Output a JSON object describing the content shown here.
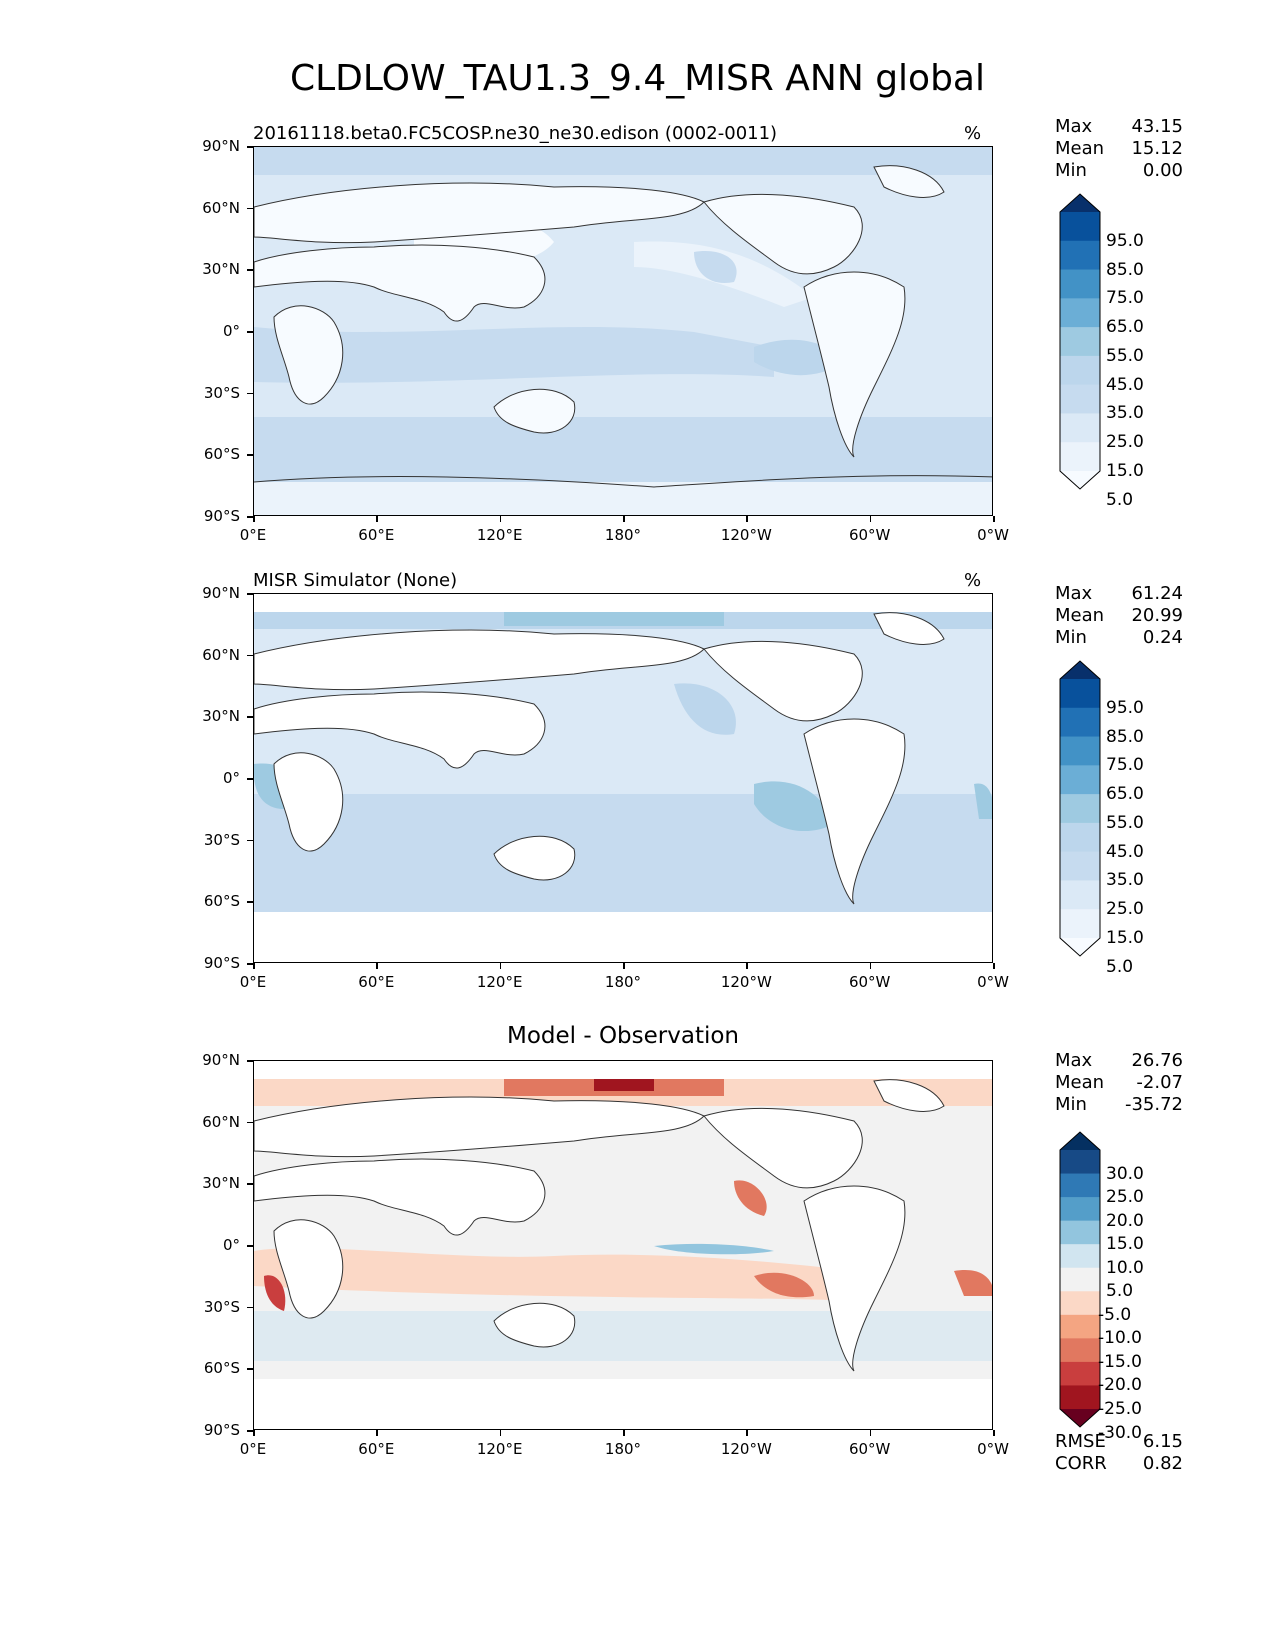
{
  "title": "CLDLOW_TAU1.3_9.4_MISR ANN global",
  "lat_labels": [
    "90°N",
    "60°N",
    "30°N",
    "0°",
    "30°S",
    "60°S",
    "90°S"
  ],
  "lon_labels": [
    "0°E",
    "60°E",
    "120°E",
    "180°",
    "120°W",
    "60°W",
    "0°W"
  ],
  "panels": [
    {
      "title": "20161118.beta0.FC5COSP.ne30_ne30.edison (0002-0011)",
      "units": "%",
      "stats": {
        "max_label": "Max",
        "max": "43.15",
        "mean_label": "Mean",
        "mean": "15.12",
        "min_label": "Min",
        "min": "0.00"
      },
      "colorbar": {
        "levels": [
          "95.0",
          "85.0",
          "75.0",
          "65.0",
          "55.0",
          "45.0",
          "35.0",
          "25.0",
          "15.0",
          "5.0"
        ],
        "colors": [
          "#08306b",
          "#08519c",
          "#2171b5",
          "#4292c6",
          "#6baed6",
          "#9ecae1",
          "#bcd6ec",
          "#c6dbef",
          "#dbe9f6",
          "#ebf3fb",
          "#f7fbff"
        ]
      }
    },
    {
      "title": "MISR Simulator (None)",
      "units": "%",
      "stats": {
        "max_label": "Max",
        "max": "61.24",
        "mean_label": "Mean",
        "mean": "20.99",
        "min_label": "Min",
        "min": "0.24"
      },
      "colorbar": {
        "levels": [
          "95.0",
          "85.0",
          "75.0",
          "65.0",
          "55.0",
          "45.0",
          "35.0",
          "25.0",
          "15.0",
          "5.0"
        ],
        "colors": [
          "#08306b",
          "#08519c",
          "#2171b5",
          "#4292c6",
          "#6baed6",
          "#9ecae1",
          "#bcd6ec",
          "#c6dbef",
          "#dbe9f6",
          "#ebf3fb",
          "#f7fbff"
        ]
      }
    },
    {
      "title": "Model - Observation",
      "stats": {
        "max_label": "Max",
        "max": "26.76",
        "mean_label": "Mean",
        "mean": "-2.07",
        "min_label": "Min",
        "min": "-35.72"
      },
      "colorbar": {
        "levels": [
          "30.0",
          "25.0",
          "20.0",
          "15.0",
          "10.0",
          "5.0",
          "-5.0",
          "-10.0",
          "-15.0",
          "-20.0",
          "-25.0",
          "-30.0"
        ],
        "colors": [
          "#053061",
          "#174a86",
          "#2f79b5",
          "#549ec9",
          "#92c5de",
          "#d1e5f0",
          "#f2f2f2",
          "#fbd8c6",
          "#f4a582",
          "#e17860",
          "#c93e3e",
          "#a0151f",
          "#67001f"
        ]
      },
      "extra": {
        "rmse_label": "RMSE",
        "rmse": "6.15",
        "corr_label": "CORR",
        "corr": "0.82"
      }
    }
  ]
}
